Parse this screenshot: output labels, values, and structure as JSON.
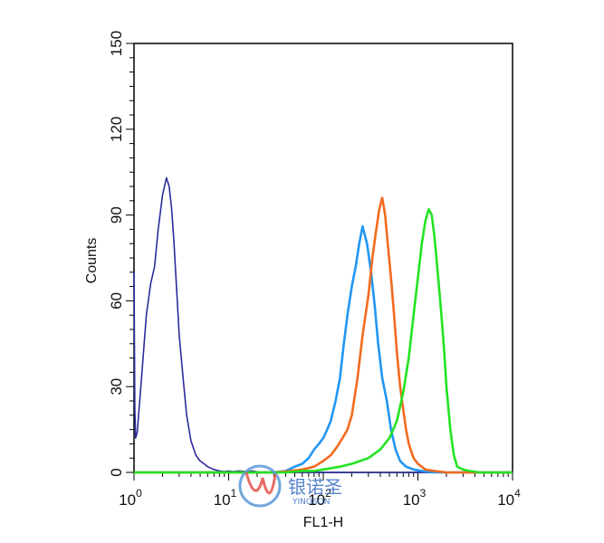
{
  "chart_data": {
    "type": "line",
    "title": "",
    "xlabel": "FL1-H",
    "ylabel": "Counts",
    "x_scale": "log",
    "xlim": [
      1,
      10000
    ],
    "ylim": [
      0,
      150
    ],
    "x_ticks": [
      {
        "value": 1,
        "base": "10",
        "exp": "0"
      },
      {
        "value": 10,
        "base": "10",
        "exp": "1"
      },
      {
        "value": 100,
        "base": "10",
        "exp": "2"
      },
      {
        "value": 1000,
        "base": "10",
        "exp": "3"
      },
      {
        "value": 10000,
        "base": "10",
        "exp": "4"
      }
    ],
    "y_ticks": [
      "0",
      "30",
      "60",
      "90",
      "120",
      "150"
    ],
    "grid": false,
    "legend": "none",
    "series": [
      {
        "color": "#2b2b9c",
        "x": [
          1,
          1.02,
          1.04,
          1.08,
          1.2,
          1.35,
          1.5,
          1.65,
          1.8,
          2.0,
          2.2,
          2.35,
          2.5,
          2.65,
          2.8,
          3.0,
          3.3,
          3.6,
          4.0,
          4.5,
          5.0,
          5.5,
          6.0,
          7.0,
          8.0,
          9.0,
          10,
          11,
          13,
          15,
          18,
          22,
          27,
          33,
          40,
          50,
          70,
          100,
          200,
          1000,
          10000
        ],
        "y": [
          70,
          22,
          12,
          14,
          33,
          55,
          66,
          72,
          85,
          97,
          103,
          100,
          92,
          80,
          66,
          48,
          33,
          20,
          11,
          6,
          4,
          3,
          2,
          1,
          0.5,
          0.3,
          0.5,
          0.3,
          0.5,
          0.3,
          0.5,
          0,
          0,
          0,
          0,
          0,
          0,
          0,
          0,
          0,
          0
        ]
      },
      {
        "color": "#2196f3",
        "x": [
          1,
          30,
          40,
          50,
          60,
          70,
          80,
          90,
          100,
          110,
          120,
          135,
          150,
          165,
          180,
          200,
          220,
          240,
          260,
          290,
          320,
          350,
          380,
          420,
          470,
          520,
          580,
          650,
          750,
          900,
          1100,
          1500,
          10000
        ],
        "y": [
          0,
          0,
          0.5,
          2,
          3,
          5,
          8,
          10,
          12,
          15,
          18,
          25,
          33,
          45,
          55,
          65,
          72,
          80,
          86,
          80,
          70,
          58,
          45,
          33,
          25,
          15,
          8,
          4,
          2,
          1,
          0.5,
          0,
          0
        ]
      },
      {
        "color": "#f36a1e",
        "x": [
          1,
          30,
          45,
          60,
          80,
          100,
          120,
          140,
          160,
          180,
          200,
          230,
          260,
          300,
          330,
          360,
          390,
          420,
          450,
          480,
          520,
          560,
          600,
          650,
          700,
          750,
          800,
          900,
          1000,
          1200,
          1500,
          2000,
          10000
        ],
        "y": [
          0,
          0,
          0.5,
          1,
          2,
          4,
          6,
          9,
          12,
          15,
          20,
          33,
          48,
          62,
          75,
          84,
          92,
          96,
          90,
          80,
          68,
          55,
          42,
          30,
          22,
          15,
          10,
          5,
          3,
          1,
          0.5,
          0,
          0
        ]
      },
      {
        "color": "#22e322",
        "x": [
          1,
          40,
          60,
          80,
          100,
          150,
          200,
          300,
          400,
          500,
          600,
          700,
          800,
          900,
          1000,
          1100,
          1200,
          1300,
          1400,
          1500,
          1600,
          1700,
          1800,
          1900,
          2000,
          2200,
          2400,
          2600,
          3000,
          3500,
          4500,
          10000
        ],
        "y": [
          0,
          0,
          0.5,
          0.5,
          1,
          2,
          3,
          5,
          8,
          12,
          18,
          28,
          40,
          55,
          68,
          80,
          88,
          92,
          90,
          82,
          72,
          62,
          52,
          42,
          30,
          15,
          6,
          2,
          1,
          0.5,
          0,
          0
        ]
      }
    ]
  },
  "watermark": {
    "name": "银诺圣",
    "latin": "YINOSON"
  }
}
